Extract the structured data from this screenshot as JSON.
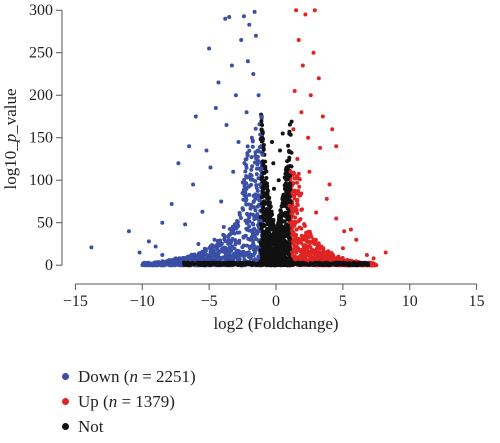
{
  "chart_data": {
    "type": "scatter",
    "title": "",
    "xlabel": "log2 (Foldchange)",
    "ylabel": "log10_p_value",
    "xlim": [
      -16,
      16
    ],
    "ylim": [
      -8,
      305
    ],
    "x_ticks": [
      -15,
      -10,
      -5,
      0,
      5,
      10,
      15
    ],
    "y_ticks": [
      0,
      50,
      100,
      150,
      200,
      250,
      300
    ],
    "x_tick_labels": [
      "−15",
      "−10",
      "−5",
      "0",
      "5",
      "10",
      "15"
    ],
    "y_tick_labels": [
      "0",
      "50",
      "100",
      "150",
      "200",
      "250",
      "300"
    ],
    "grid": false,
    "legend_position": "bottom-left",
    "series": [
      {
        "name": "Down",
        "count": 2251,
        "color": "#3b4fa6",
        "points": [
          [
            -13.8,
            21
          ],
          [
            -11,
            40
          ],
          [
            -10.2,
            15
          ],
          [
            -9.5,
            28
          ],
          [
            -9,
            22
          ],
          [
            -8.5,
            50
          ],
          [
            -8.5,
            12
          ],
          [
            -8,
            6
          ],
          [
            -7.8,
            72
          ],
          [
            -7.5,
            8
          ],
          [
            -7.3,
            120
          ],
          [
            -6.8,
            48
          ],
          [
            -6.5,
            140
          ],
          [
            -6.2,
            95
          ],
          [
            -6,
            175
          ],
          [
            -5.8,
            25
          ],
          [
            -5.5,
            63
          ],
          [
            -5.2,
            135
          ],
          [
            -5,
            255
          ],
          [
            -4.9,
            115
          ],
          [
            -4.6,
            30
          ],
          [
            -4.5,
            185
          ],
          [
            -4.3,
            215
          ],
          [
            -4.1,
            75
          ],
          [
            -3.9,
            45
          ],
          [
            -3.8,
            290
          ],
          [
            -3.7,
            165
          ],
          [
            -3.5,
            292
          ],
          [
            -3.3,
            235
          ],
          [
            -3.2,
            110
          ],
          [
            -3,
            200
          ],
          [
            -2.8,
            145
          ],
          [
            -2.6,
            265
          ],
          [
            -2.5,
            85
          ],
          [
            -2.4,
            293
          ],
          [
            -2.2,
            180
          ],
          [
            -2.1,
            240
          ],
          [
            -2,
            283
          ],
          [
            -1.9,
            60
          ],
          [
            -1.8,
            150
          ],
          [
            -1.7,
            225
          ],
          [
            -1.6,
            298
          ],
          [
            -1.5,
            270
          ],
          [
            -1.4,
            120
          ],
          [
            -1.3,
            200
          ],
          [
            -1.2,
            95
          ],
          [
            -1.1,
            175
          ],
          [
            -1,
            130
          ]
        ]
      },
      {
        "name": "Up",
        "count": 1379,
        "color": "#e02424",
        "points": [
          [
            8.2,
            15
          ],
          [
            7.3,
            8
          ],
          [
            6.8,
            12
          ],
          [
            6,
            30
          ],
          [
            5.6,
            42
          ],
          [
            5.1,
            40
          ],
          [
            5,
            20
          ],
          [
            4.5,
            140
          ],
          [
            4.5,
            55
          ],
          [
            4.2,
            160
          ],
          [
            4,
            95
          ],
          [
            3.8,
            78
          ],
          [
            3.5,
            175
          ],
          [
            3.3,
            138
          ],
          [
            3.2,
            220
          ],
          [
            3,
            62
          ],
          [
            2.9,
            300
          ],
          [
            2.8,
            250
          ],
          [
            2.6,
            200
          ],
          [
            2.5,
            110
          ],
          [
            2.4,
            150
          ],
          [
            2.2,
            295
          ],
          [
            2,
            235
          ],
          [
            1.9,
            180
          ],
          [
            1.8,
            82
          ],
          [
            1.7,
            265
          ],
          [
            1.6,
            125
          ],
          [
            1.5,
            300
          ],
          [
            1.4,
            205
          ],
          [
            1.3,
            160
          ],
          [
            1.2,
            40
          ],
          [
            1.1,
            110
          ],
          [
            1,
            70
          ]
        ]
      },
      {
        "name": "Not",
        "color": "#111111",
        "points": [
          [
            -0.3,
            145
          ],
          [
            -0.2,
            120
          ],
          [
            -0.15,
            90
          ],
          [
            0.2,
            100
          ],
          [
            0.3,
            135
          ],
          [
            0.5,
            155
          ],
          [
            -0.5,
            60
          ],
          [
            0.6,
            75
          ]
        ]
      }
    ]
  },
  "legend": {
    "items": [
      {
        "pre": "Down (",
        "n": "n",
        "post": " = 2251)",
        "color": "#3b4fa6"
      },
      {
        "pre": "Up (",
        "n": "n",
        "post": " = 1379)",
        "color": "#e02424"
      },
      {
        "pre": "Not",
        "n": "",
        "post": "",
        "color": "#111111"
      }
    ]
  }
}
